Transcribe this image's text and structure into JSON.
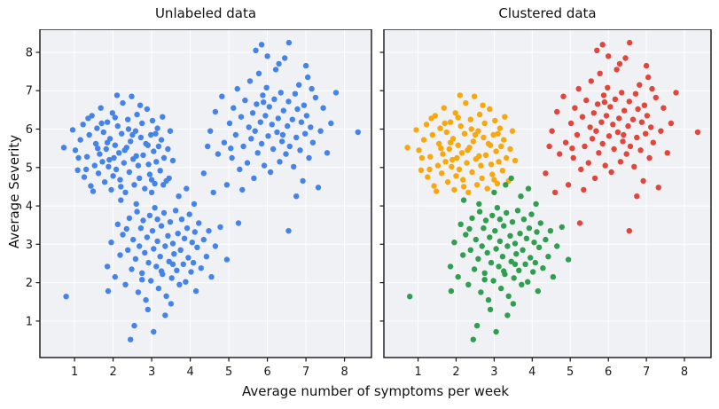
{
  "figure": {
    "background": "#ffffff",
    "plot_background": "#f0f1f4",
    "grid_color": "#ffffff",
    "spine_color": "#151515"
  },
  "chart_data": {
    "type": "scatter",
    "xlabel": "Average number of symptoms per week",
    "ylabel": "Average Severity",
    "xlim": [
      0.1,
      8.7
    ],
    "ylim": [
      0.05,
      8.6
    ],
    "xticks": [
      1,
      2,
      3,
      4,
      5,
      6,
      7,
      8
    ],
    "yticks": [
      1,
      2,
      3,
      4,
      5,
      6,
      7,
      8
    ],
    "grid": true,
    "marker_radius": 3.2,
    "panels": [
      {
        "title": "Unlabeled data",
        "mode": "unlabeled",
        "color": "#4483ea",
        "show_y_tick_labels": true
      },
      {
        "title": "Clustered data",
        "mode": "clustered",
        "show_y_tick_labels": false
      }
    ],
    "clusters": [
      {
        "name": "cluster-amber",
        "color": "#f8a70c",
        "points": [
          [
            0.72,
            5.52
          ],
          [
            0.95,
            5.98
          ],
          [
            1.02,
            5.45
          ],
          [
            1.08,
            4.93
          ],
          [
            1.15,
            5.72
          ],
          [
            1.22,
            6.12
          ],
          [
            1.25,
            4.75
          ],
          [
            1.32,
            5.28
          ],
          [
            1.38,
            5.85
          ],
          [
            1.42,
            4.52
          ],
          [
            1.45,
            6.35
          ],
          [
            1.52,
            5.05
          ],
          [
            1.55,
            5.62
          ],
          [
            1.58,
            6.02
          ],
          [
            1.62,
            4.85
          ],
          [
            1.65,
            5.35
          ],
          [
            1.68,
            6.55
          ],
          [
            1.72,
            5.15
          ],
          [
            1.75,
            5.92
          ],
          [
            1.78,
            4.62
          ],
          [
            1.82,
            5.48
          ],
          [
            1.85,
            6.18
          ],
          [
            1.88,
            5.02
          ],
          [
            1.92,
            5.75
          ],
          [
            1.95,
            4.42
          ],
          [
            1.98,
            6.42
          ],
          [
            2.02,
            5.25
          ],
          [
            2.05,
            5.58
          ],
          [
            2.08,
            4.95
          ],
          [
            2.12,
            6.08
          ],
          [
            2.15,
            5.38
          ],
          [
            2.18,
            4.68
          ],
          [
            2.22,
            5.88
          ],
          [
            2.25,
            6.68
          ],
          [
            2.28,
            5.12
          ],
          [
            2.32,
            4.35
          ],
          [
            2.35,
            5.52
          ],
          [
            2.38,
            6.25
          ],
          [
            2.42,
            4.88
          ],
          [
            2.45,
            5.68
          ],
          [
            2.48,
            6.85
          ],
          [
            2.52,
            5.22
          ],
          [
            2.55,
            4.55
          ],
          [
            2.58,
            5.95
          ],
          [
            2.62,
            6.38
          ],
          [
            2.65,
            5.05
          ],
          [
            2.68,
            4.72
          ],
          [
            2.72,
            5.78
          ],
          [
            2.75,
            6.15
          ],
          [
            2.78,
            5.32
          ],
          [
            2.82,
            4.45
          ],
          [
            2.85,
            5.62
          ],
          [
            2.88,
            6.52
          ],
          [
            2.92,
            5.08
          ],
          [
            2.95,
            4.82
          ],
          [
            2.98,
            5.85
          ],
          [
            3.02,
            6.22
          ],
          [
            3.05,
            5.42
          ],
          [
            3.08,
            4.58
          ],
          [
            3.12,
            5.15
          ],
          [
            3.15,
            6.02
          ],
          [
            3.18,
            5.55
          ],
          [
            3.22,
            4.92
          ],
          [
            3.25,
            5.72
          ],
          [
            3.28,
            6.32
          ],
          [
            3.32,
            5.25
          ],
          [
            3.38,
            4.65
          ],
          [
            3.42,
            5.48
          ],
          [
            3.48,
            5.95
          ],
          [
            3.55,
            5.18
          ],
          [
            1.35,
            6.28
          ],
          [
            1.48,
            4.38
          ],
          [
            2.1,
            6.88
          ],
          [
            1.9,
            5.2
          ],
          [
            2.3,
            5.45
          ],
          [
            2.6,
            5.3
          ],
          [
            1.6,
            5.5
          ],
          [
            2.0,
            4.78
          ],
          [
            2.4,
            6.0
          ],
          [
            2.7,
            6.62
          ],
          [
            1.1,
            5.25
          ],
          [
            1.3,
            4.95
          ],
          [
            1.7,
            6.15
          ],
          [
            2.2,
            4.5
          ],
          [
            2.5,
            5.85
          ],
          [
            2.9,
            5.58
          ],
          [
            3.0,
            4.68
          ],
          [
            3.1,
            5.88
          ],
          [
            1.85,
            5.65
          ],
          [
            2.05,
            6.3
          ]
        ]
      },
      {
        "name": "cluster-green",
        "color": "#2f9e4f",
        "points": [
          [
            0.78,
            1.64
          ],
          [
            1.85,
            2.42
          ],
          [
            1.95,
            3.05
          ],
          [
            2.05,
            2.15
          ],
          [
            2.12,
            3.52
          ],
          [
            2.18,
            2.72
          ],
          [
            2.25,
            3.25
          ],
          [
            2.32,
            1.95
          ],
          [
            2.38,
            2.85
          ],
          [
            2.42,
            3.68
          ],
          [
            2.48,
            2.35
          ],
          [
            2.52,
            3.12
          ],
          [
            2.58,
            2.62
          ],
          [
            2.62,
            3.85
          ],
          [
            2.65,
            1.75
          ],
          [
            2.68,
            2.95
          ],
          [
            2.72,
            3.42
          ],
          [
            2.75,
            2.25
          ],
          [
            2.78,
            3.62
          ],
          [
            2.82,
            2.78
          ],
          [
            2.85,
            1.55
          ],
          [
            2.88,
            3.18
          ],
          [
            2.92,
            2.52
          ],
          [
            2.95,
            3.75
          ],
          [
            2.98,
            2.05
          ],
          [
            3.02,
            3.35
          ],
          [
            3.05,
            2.88
          ],
          [
            3.08,
            3.95
          ],
          [
            3.12,
            2.42
          ],
          [
            3.15,
            3.08
          ],
          [
            3.18,
            1.85
          ],
          [
            3.22,
            2.68
          ],
          [
            3.25,
            3.48
          ],
          [
            3.28,
            2.22
          ],
          [
            3.32,
            3.82
          ],
          [
            3.35,
            2.95
          ],
          [
            3.38,
            1.65
          ],
          [
            3.42,
            3.22
          ],
          [
            3.45,
            2.55
          ],
          [
            3.48,
            3.58
          ],
          [
            3.52,
            2.12
          ],
          [
            3.55,
            3.02
          ],
          [
            3.58,
            2.75
          ],
          [
            3.62,
            3.88
          ],
          [
            3.65,
            2.32
          ],
          [
            3.68,
            3.28
          ],
          [
            3.72,
            1.95
          ],
          [
            3.75,
            2.85
          ],
          [
            3.78,
            3.65
          ],
          [
            3.82,
            2.48
          ],
          [
            3.85,
            3.15
          ],
          [
            3.88,
            2.02
          ],
          [
            3.92,
            3.42
          ],
          [
            3.95,
            2.65
          ],
          [
            3.98,
            3.78
          ],
          [
            4.02,
            2.28
          ],
          [
            4.05,
            3.05
          ],
          [
            4.08,
            2.52
          ],
          [
            4.12,
            3.32
          ],
          [
            4.15,
            1.78
          ],
          [
            4.18,
            2.92
          ],
          [
            4.22,
            3.55
          ],
          [
            4.28,
            2.38
          ],
          [
            4.35,
            3.12
          ],
          [
            4.42,
            2.68
          ],
          [
            4.48,
            3.35
          ],
          [
            4.55,
            2.15
          ],
          [
            4.65,
            2.95
          ],
          [
            4.78,
            3.45
          ],
          [
            4.95,
            2.6
          ],
          [
            2.45,
            0.52
          ],
          [
            2.55,
            0.88
          ],
          [
            3.05,
            0.72
          ],
          [
            3.35,
            1.15
          ],
          [
            2.9,
            1.3
          ],
          [
            3.5,
            1.45
          ],
          [
            2.2,
            4.15
          ],
          [
            3.0,
            4.35
          ],
          [
            3.3,
            4.55
          ],
          [
            3.7,
            4.25
          ],
          [
            2.6,
            4.05
          ],
          [
            3.15,
            3.65
          ],
          [
            3.45,
            4.72
          ],
          [
            3.9,
            4.45
          ],
          [
            4.1,
            4.05
          ],
          [
            2.75,
            2.08
          ],
          [
            3.55,
            2.48
          ],
          [
            3.25,
            2.3
          ],
          [
            2.35,
            3.4
          ],
          [
            1.87,
            1.78
          ]
        ]
      },
      {
        "name": "cluster-red",
        "color": "#e2453a",
        "points": [
          [
            4.35,
            4.85
          ],
          [
            4.52,
            5.95
          ],
          [
            4.65,
            6.45
          ],
          [
            4.72,
            5.35
          ],
          [
            4.82,
            6.85
          ],
          [
            4.88,
            5.65
          ],
          [
            4.95,
            4.55
          ],
          [
            5.02,
            6.15
          ],
          [
            5.08,
            5.25
          ],
          [
            5.12,
            6.55
          ],
          [
            5.18,
            5.85
          ],
          [
            5.22,
            7.05
          ],
          [
            5.28,
            4.95
          ],
          [
            5.32,
            6.32
          ],
          [
            5.38,
            5.55
          ],
          [
            5.42,
            6.75
          ],
          [
            5.48,
            5.12
          ],
          [
            5.52,
            6.05
          ],
          [
            5.55,
            7.25
          ],
          [
            5.58,
            5.75
          ],
          [
            5.62,
            6.42
          ],
          [
            5.65,
            4.72
          ],
          [
            5.68,
            5.95
          ],
          [
            5.72,
            6.65
          ],
          [
            5.75,
            5.38
          ],
          [
            5.78,
            7.45
          ],
          [
            5.82,
            6.18
          ],
          [
            5.85,
            5.62
          ],
          [
            5.88,
            6.88
          ],
          [
            5.92,
            5.05
          ],
          [
            5.95,
            6.35
          ],
          [
            5.98,
            7.08
          ],
          [
            6.02,
            5.82
          ],
          [
            6.05,
            6.58
          ],
          [
            6.08,
            4.88
          ],
          [
            6.12,
            6.12
          ],
          [
            6.15,
            5.48
          ],
          [
            6.18,
            6.78
          ],
          [
            6.22,
            7.55
          ],
          [
            6.25,
            5.92
          ],
          [
            6.28,
            6.28
          ],
          [
            6.32,
            5.15
          ],
          [
            6.35,
            6.95
          ],
          [
            6.38,
            5.68
          ],
          [
            6.42,
            6.48
          ],
          [
            6.45,
            7.85
          ],
          [
            6.48,
            5.35
          ],
          [
            6.52,
            6.08
          ],
          [
            6.55,
            6.72
          ],
          [
            6.58,
            5.55
          ],
          [
            6.56,
            8.25
          ],
          [
            6.65,
            6.25
          ],
          [
            6.68,
            5.02
          ],
          [
            6.72,
            6.92
          ],
          [
            6.75,
            5.78
          ],
          [
            6.78,
            6.52
          ],
          [
            6.82,
            7.15
          ],
          [
            6.85,
            5.45
          ],
          [
            6.88,
            6.18
          ],
          [
            6.92,
            4.65
          ],
          [
            6.95,
            6.62
          ],
          [
            6.98,
            5.88
          ],
          [
            7.02,
            6.35
          ],
          [
            7.05,
            7.35
          ],
          [
            7.08,
            5.25
          ],
          [
            7.12,
            6.05
          ],
          [
            7.18,
            5.65
          ],
          [
            7.25,
            6.82
          ],
          [
            7.32,
            4.48
          ],
          [
            7.38,
            5.95
          ],
          [
            7.45,
            6.55
          ],
          [
            7.55,
            5.38
          ],
          [
            7.65,
            6.15
          ],
          [
            7.78,
            6.95
          ],
          [
            8.35,
            5.92
          ],
          [
            4.45,
            5.55
          ],
          [
            4.6,
            4.35
          ],
          [
            5.05,
            5.5
          ],
          [
            5.35,
            4.42
          ],
          [
            5.85,
            8.2
          ],
          [
            6.3,
            7.7
          ],
          [
            6.0,
            7.9
          ],
          [
            5.7,
            8.05
          ],
          [
            7.0,
            7.65
          ],
          [
            6.55,
            3.35
          ],
          [
            5.25,
            3.55
          ],
          [
            6.75,
            4.25
          ],
          [
            7.15,
            7.05
          ],
          [
            6.4,
            5.85
          ],
          [
            5.9,
            6.7
          ]
        ]
      }
    ]
  }
}
